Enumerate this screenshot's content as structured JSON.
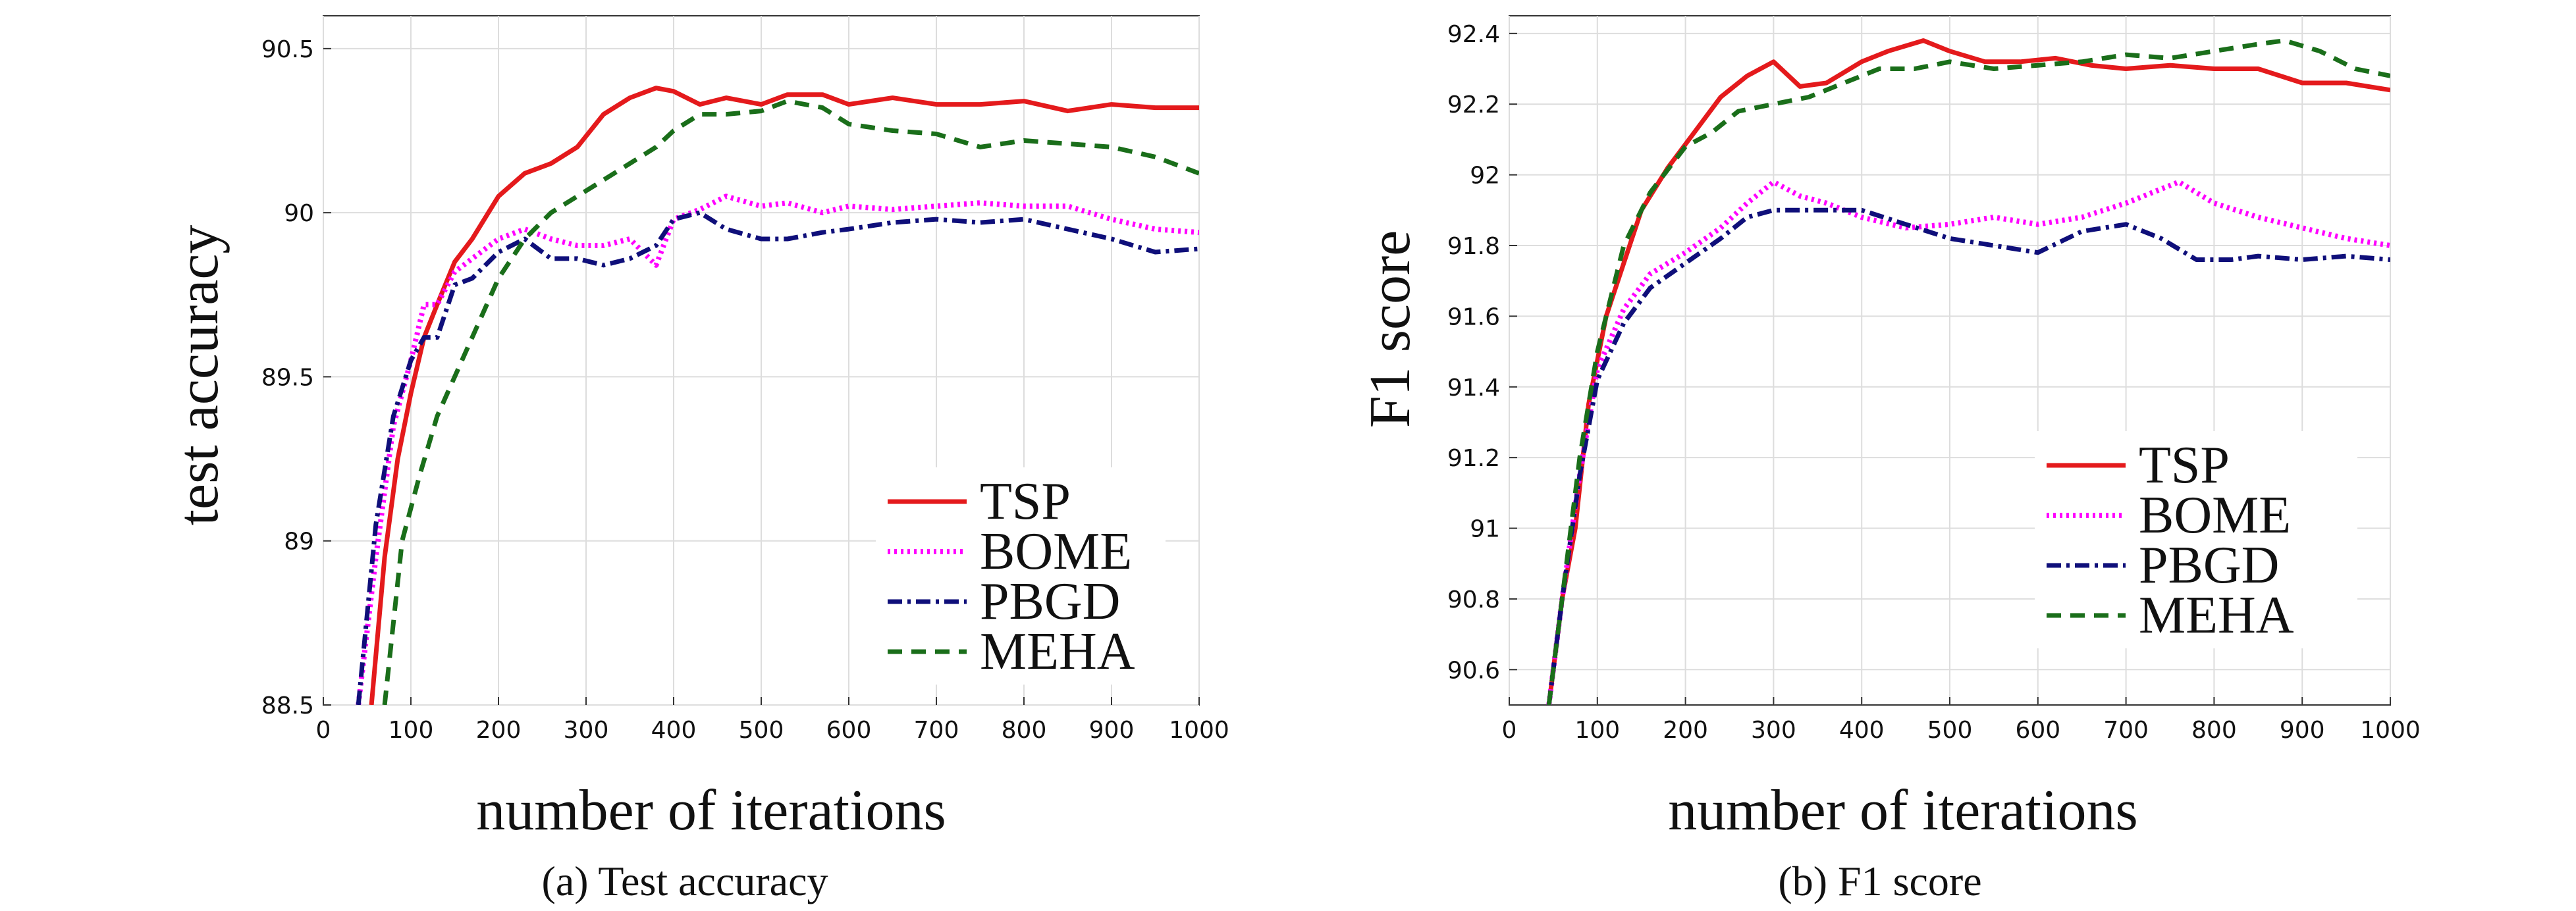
{
  "colors": {
    "TSP": "#e41a1c",
    "BOME": "#ff00ff",
    "PBGD": "#0f0f7a",
    "MEHA": "#1a6e1a",
    "grid": "#dddddd",
    "axis": "#333333"
  },
  "chart_data": [
    {
      "type": "line",
      "caption": "(a)  Test accuracy",
      "xlabel": "number of iterations",
      "ylabel": "test accuracy",
      "xlim": [
        0,
        1000
      ],
      "ylim": [
        88.5,
        90.6
      ],
      "xticks": [
        0,
        100,
        200,
        300,
        400,
        500,
        600,
        700,
        800,
        900,
        1000
      ],
      "yticks": [
        88.5,
        89,
        89.5,
        90,
        90.5
      ],
      "ytick_labels": [
        "88.5",
        "89",
        "89.5",
        "90",
        "90.5"
      ],
      "grid": true,
      "legend_position": "lower-right",
      "series": [
        {
          "name": "TSP",
          "style": "solid",
          "x": [
            55,
            70,
            85,
            100,
            115,
            130,
            150,
            170,
            200,
            230,
            260,
            290,
            320,
            350,
            380,
            400,
            430,
            460,
            500,
            530,
            570,
            600,
            650,
            700,
            750,
            800,
            850,
            900,
            950,
            1000
          ],
          "y": [
            88.5,
            88.95,
            89.25,
            89.45,
            89.62,
            89.72,
            89.85,
            89.92,
            90.05,
            90.12,
            90.15,
            90.2,
            90.3,
            90.35,
            90.38,
            90.37,
            90.33,
            90.35,
            90.33,
            90.36,
            90.36,
            90.33,
            90.35,
            90.33,
            90.33,
            90.34,
            90.31,
            90.33,
            90.32,
            90.32
          ]
        },
        {
          "name": "BOME",
          "style": "dotted",
          "x": [
            40,
            60,
            80,
            100,
            115,
            130,
            150,
            170,
            200,
            230,
            260,
            290,
            320,
            350,
            380,
            400,
            430,
            460,
            500,
            530,
            570,
            600,
            650,
            700,
            750,
            800,
            850,
            900,
            950,
            1000
          ],
          "y": [
            88.5,
            88.95,
            89.35,
            89.55,
            89.72,
            89.72,
            89.82,
            89.86,
            89.92,
            89.95,
            89.92,
            89.9,
            89.9,
            89.92,
            89.84,
            89.98,
            90.01,
            90.05,
            90.02,
            90.03,
            90.0,
            90.02,
            90.01,
            90.02,
            90.03,
            90.02,
            90.02,
            89.98,
            89.95,
            89.94
          ]
        },
        {
          "name": "PBGD",
          "style": "dashdot",
          "x": [
            40,
            60,
            80,
            100,
            115,
            130,
            150,
            170,
            200,
            230,
            260,
            290,
            320,
            350,
            380,
            400,
            430,
            460,
            500,
            530,
            570,
            600,
            650,
            700,
            750,
            800,
            850,
            900,
            950,
            1000
          ],
          "y": [
            88.5,
            89.05,
            89.38,
            89.55,
            89.62,
            89.62,
            89.78,
            89.8,
            89.88,
            89.92,
            89.86,
            89.86,
            89.84,
            89.86,
            89.9,
            89.98,
            90.0,
            89.95,
            89.92,
            89.92,
            89.94,
            89.95,
            89.97,
            89.98,
            89.97,
            89.98,
            89.95,
            89.92,
            89.88,
            89.89
          ]
        },
        {
          "name": "MEHA",
          "style": "dashed",
          "x": [
            70,
            90,
            110,
            130,
            150,
            170,
            200,
            230,
            260,
            290,
            320,
            350,
            380,
            400,
            430,
            460,
            500,
            530,
            570,
            600,
            650,
            700,
            750,
            800,
            850,
            900,
            950,
            1000
          ],
          "y": [
            88.5,
            89.0,
            89.2,
            89.38,
            89.5,
            89.62,
            89.8,
            89.92,
            90.0,
            90.05,
            90.1,
            90.15,
            90.2,
            90.25,
            90.3,
            90.3,
            90.31,
            90.34,
            90.32,
            90.27,
            90.25,
            90.24,
            90.2,
            90.22,
            90.21,
            90.2,
            90.17,
            90.12
          ]
        }
      ]
    },
    {
      "type": "line",
      "caption": "(b)  F1 score",
      "xlabel": "number of iterations",
      "ylabel": "F1 score",
      "xlim": [
        0,
        1000
      ],
      "ylim": [
        90.5,
        92.45
      ],
      "xticks": [
        0,
        100,
        200,
        300,
        400,
        500,
        600,
        700,
        800,
        900,
        1000
      ],
      "yticks": [
        90.6,
        90.8,
        91,
        91.2,
        91.4,
        91.6,
        91.8,
        92,
        92.2,
        92.4
      ],
      "ytick_labels": [
        "90.6",
        "90.8",
        "91",
        "91.2",
        "91.4",
        "91.6",
        "91.8",
        "92",
        "92.2",
        "92.4"
      ],
      "grid": true,
      "legend_position": "lower-right",
      "series": [
        {
          "name": "TSP",
          "style": "solid",
          "x": [
            45,
            60,
            75,
            90,
            110,
            130,
            150,
            180,
            210,
            240,
            270,
            300,
            330,
            360,
            400,
            430,
            470,
            500,
            540,
            580,
            620,
            660,
            700,
            750,
            800,
            850,
            900,
            950,
            1000
          ],
          "y": [
            90.5,
            90.8,
            91.0,
            91.35,
            91.6,
            91.75,
            91.9,
            92.02,
            92.12,
            92.22,
            92.28,
            92.32,
            92.25,
            92.26,
            92.32,
            92.35,
            92.38,
            92.35,
            92.32,
            92.32,
            92.33,
            92.31,
            92.3,
            92.31,
            92.3,
            92.3,
            92.26,
            92.26,
            92.24
          ]
        },
        {
          "name": "BOME",
          "style": "dotted",
          "x": [
            45,
            60,
            80,
            100,
            130,
            160,
            200,
            240,
            270,
            300,
            330,
            360,
            400,
            450,
            500,
            550,
            600,
            650,
            700,
            760,
            800,
            850,
            900,
            950,
            1000
          ],
          "y": [
            90.5,
            90.8,
            91.15,
            91.45,
            91.62,
            91.72,
            91.78,
            91.85,
            91.92,
            91.98,
            91.94,
            91.92,
            91.88,
            91.85,
            91.86,
            91.88,
            91.86,
            91.88,
            91.92,
            91.98,
            91.92,
            91.88,
            91.85,
            91.82,
            91.8
          ]
        },
        {
          "name": "PBGD",
          "style": "dashdot",
          "x": [
            45,
            60,
            80,
            100,
            130,
            160,
            200,
            240,
            270,
            300,
            330,
            360,
            400,
            450,
            500,
            550,
            600,
            650,
            700,
            740,
            780,
            820,
            850,
            900,
            950,
            1000
          ],
          "y": [
            90.5,
            90.8,
            91.15,
            91.42,
            91.58,
            91.68,
            91.75,
            91.82,
            91.88,
            91.9,
            91.9,
            91.9,
            91.9,
            91.86,
            91.82,
            91.8,
            91.78,
            91.84,
            91.86,
            91.82,
            91.76,
            91.76,
            91.77,
            91.76,
            91.77,
            91.76
          ]
        },
        {
          "name": "MEHA",
          "style": "dashed",
          "x": [
            45,
            60,
            80,
            100,
            130,
            160,
            200,
            230,
            260,
            300,
            340,
            380,
            420,
            460,
            500,
            550,
            600,
            650,
            700,
            750,
            800,
            850,
            880,
            920,
            960,
            1000
          ],
          "y": [
            90.5,
            90.8,
            91.2,
            91.5,
            91.8,
            91.95,
            92.08,
            92.12,
            92.18,
            92.2,
            92.22,
            92.26,
            92.3,
            92.3,
            92.32,
            92.3,
            92.31,
            92.32,
            92.34,
            92.33,
            92.35,
            92.37,
            92.38,
            92.35,
            92.3,
            92.28
          ]
        }
      ]
    }
  ]
}
